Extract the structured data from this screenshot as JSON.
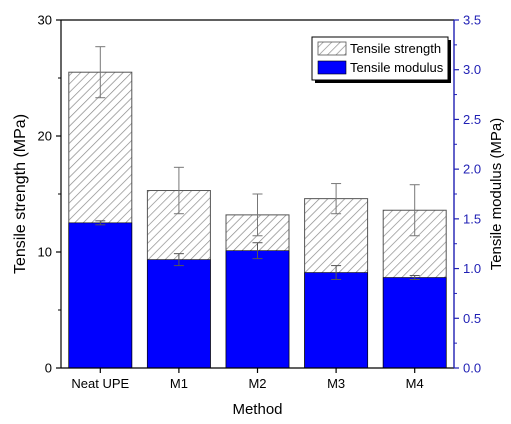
{
  "chart_data": {
    "type": "bar",
    "xlabel": "Method",
    "ylabel_left": "Tensile  strength (MPa)",
    "ylabel_right": "Tensile modulus (MPa)",
    "categories": [
      "Neat UPE",
      "M1",
      "M2",
      "M3",
      "M4"
    ],
    "y_left_ticks": [
      "0",
      "10",
      "20",
      "30"
    ],
    "y_right_ticks": [
      "0.0",
      "0.5",
      "1.0",
      "1.5",
      "2.0",
      "2.5",
      "3.0",
      "3.5"
    ],
    "ylim_left": [
      0,
      30
    ],
    "ylim_right": [
      0,
      3.5
    ],
    "legend_position": "top-right",
    "series": [
      {
        "name": "Tensile  strength",
        "axis": "left",
        "values": [
          25.5,
          15.3,
          13.2,
          14.6,
          13.6
        ],
        "errors": [
          2.2,
          2.0,
          1.8,
          1.3,
          2.2
        ],
        "fill": "hatch",
        "color": "#bdbdbd"
      },
      {
        "name": "Tensile modulus",
        "axis": "right",
        "values": [
          1.46,
          1.09,
          1.18,
          0.96,
          0.91
        ],
        "errors": [
          0.02,
          0.06,
          0.08,
          0.07,
          0.02
        ],
        "fill": "solid",
        "color": "#0000ff"
      }
    ],
    "right_axis_color": "#1f1fb4"
  }
}
